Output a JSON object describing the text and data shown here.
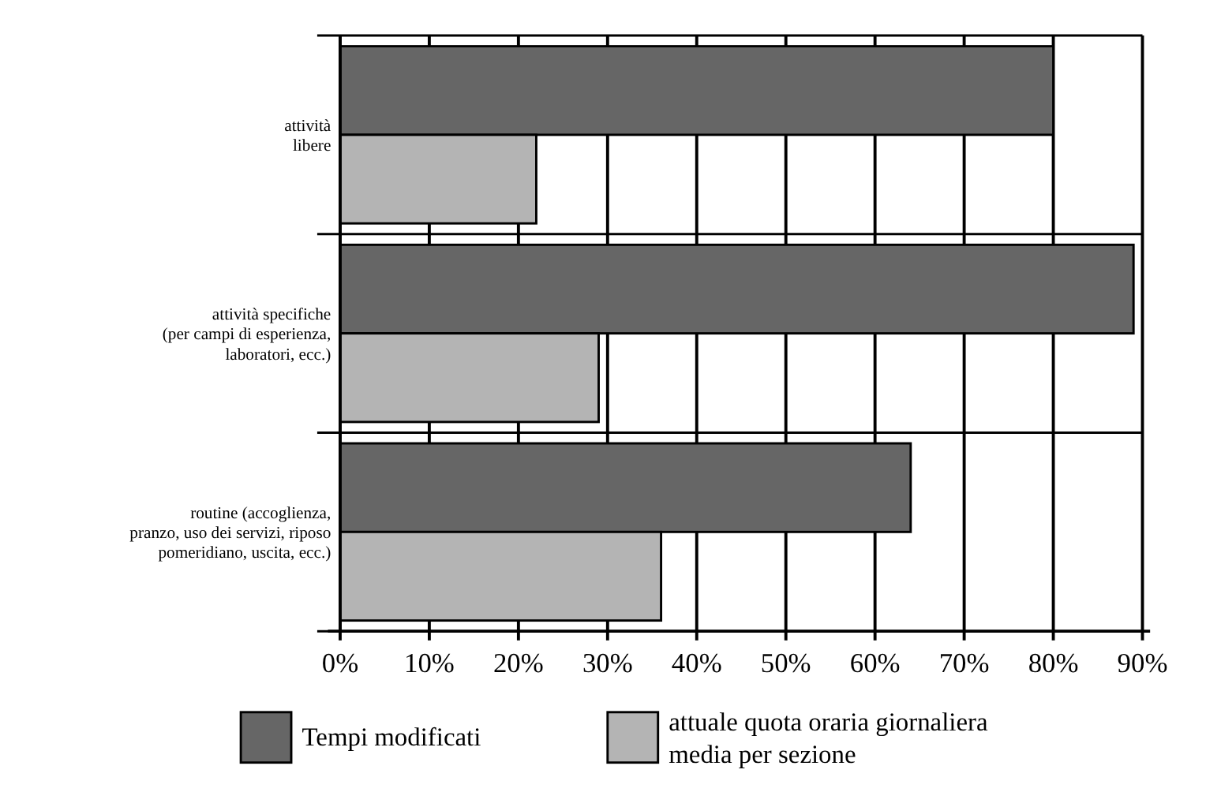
{
  "chart_data": {
    "type": "bar",
    "orientation": "horizontal",
    "categories": [
      "attività\nlibere",
      "attività specifiche\n(per campi di esperienza,\nlaboratori, ecc.)",
      "routine (accoglienza,\npranzo, uso dei servizi, riposo\npomeridiano, uscita, ecc.)"
    ],
    "series": [
      {
        "name": "Tempi modificati",
        "color": "#666666",
        "values": [
          80,
          89,
          64
        ]
      },
      {
        "name": "attuale quota oraria giornaliera media per sezione",
        "color": "#b4b4b4",
        "values": [
          22,
          29,
          36
        ]
      }
    ],
    "xlim": [
      0,
      90
    ],
    "xticks": [
      {
        "value": 0,
        "label": "0%"
      },
      {
        "value": 10,
        "label": "10%"
      },
      {
        "value": 20,
        "label": "20%"
      },
      {
        "value": 30,
        "label": "30%"
      },
      {
        "value": 40,
        "label": "40%"
      },
      {
        "value": 50,
        "label": "50%"
      },
      {
        "value": 60,
        "label": "60%"
      },
      {
        "value": 70,
        "label": "70%"
      },
      {
        "value": 80,
        "label": "80%"
      },
      {
        "value": 90,
        "label": "90%"
      }
    ],
    "grid": "x",
    "legend": "bottom"
  }
}
